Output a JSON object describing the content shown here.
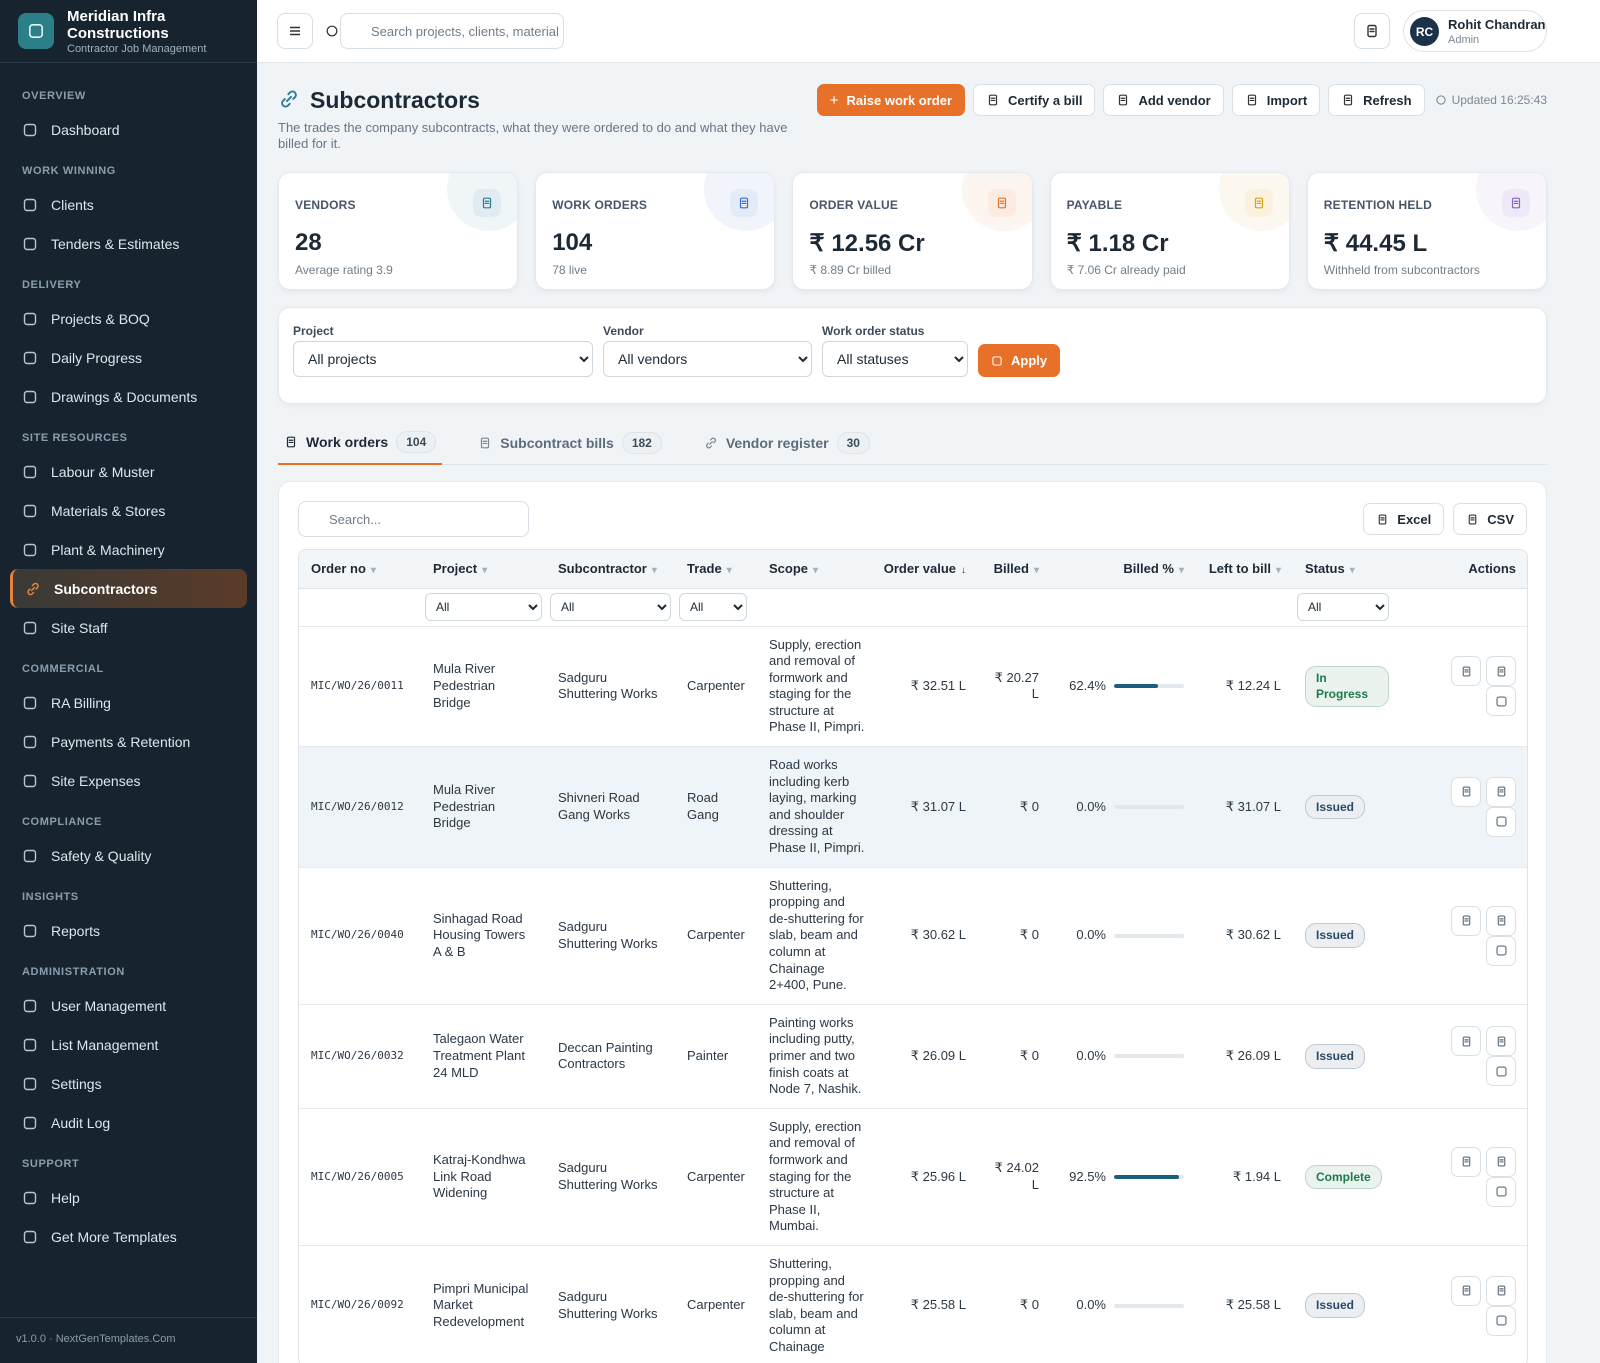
{
  "sidebar": {
    "brand": {
      "name": "Meridian Infra Constructions",
      "tagline": "Contractor Job Management"
    },
    "sections": [
      {
        "title": "OVERVIEW",
        "items": [
          "Dashboard"
        ]
      },
      {
        "title": "WORK WINNING",
        "items": [
          "Clients",
          "Tenders & Estimates"
        ]
      },
      {
        "title": "DELIVERY",
        "items": [
          "Projects & BOQ",
          "Daily Progress",
          "Drawings & Documents"
        ]
      },
      {
        "title": "SITE RESOURCES",
        "items": [
          "Labour & Muster",
          "Materials & Stores",
          "Plant & Machinery",
          {
            "label": "Subcontractors",
            "active": true
          },
          "Site Staff"
        ]
      },
      {
        "title": "COMMERCIAL",
        "items": [
          "RA Billing",
          "Payments & Retention",
          "Site Expenses"
        ]
      },
      {
        "title": "COMPLIANCE",
        "items": [
          "Safety & Quality"
        ]
      },
      {
        "title": "INSIGHTS",
        "items": [
          "Reports"
        ]
      },
      {
        "title": "ADMINISTRATION",
        "items": [
          "User Management",
          "List Management",
          "Settings",
          "Audit Log"
        ]
      },
      {
        "title": "SUPPORT",
        "items": [
          "Help",
          "Get More Templates"
        ]
      }
    ],
    "footer": "v1.0.0 · NextGenTemplates.Com"
  },
  "topbar": {
    "search_placeholder": "Search projects, clients, material",
    "user": {
      "initials": "RC",
      "name": "Rohit Chandran",
      "role": "Admin"
    }
  },
  "header": {
    "title": "Subcontractors",
    "subtitle": "The trades the company subcontracts, what they were ordered to do and what they have billed for it.",
    "primary_action": "Raise work order",
    "actions": [
      "Certify a bill",
      "Add vendor",
      "Import",
      "Refresh"
    ],
    "updated": "Updated 16:25:43"
  },
  "kpis": [
    {
      "label": "VENDORS",
      "value": "28",
      "note": "Average rating 3.9",
      "color": "#2b7a9c"
    },
    {
      "label": "WORK ORDERS",
      "value": "104",
      "note": "78 live",
      "color": "#3b6fc4"
    },
    {
      "label": "ORDER VALUE",
      "value": "₹ 12.56 Cr",
      "note": "₹ 8.89 Cr billed",
      "color": "#e8712a"
    },
    {
      "label": "PAYABLE",
      "value": "₹ 1.18 Cr",
      "note": "₹ 7.06 Cr already paid",
      "color": "#d9a21b"
    },
    {
      "label": "RETENTION HELD",
      "value": "₹ 44.45 L",
      "note": "Withheld from subcontractors",
      "color": "#8a63c9"
    }
  ],
  "filters": {
    "fields": [
      {
        "label": "Project",
        "value": "All projects"
      },
      {
        "label": "Vendor",
        "value": "All vendors"
      },
      {
        "label": "Work order status",
        "value": "All statuses"
      }
    ],
    "apply": "Apply"
  },
  "tabs": [
    {
      "label": "Work orders",
      "count": 104,
      "active": true
    },
    {
      "label": "Subcontract bills",
      "count": 182
    },
    {
      "label": "Vendor register",
      "count": 30
    }
  ],
  "table": {
    "search_placeholder": "Search...",
    "exports": [
      "Excel",
      "CSV"
    ],
    "columns": [
      "Order no",
      "Project",
      "Subcontractor",
      "Trade",
      "Scope",
      "Order value",
      "Billed",
      "Billed %",
      "Left to bill",
      "Status",
      "Actions"
    ],
    "sort_column": 5,
    "column_filters": [
      null,
      "All",
      "All",
      "All",
      null,
      null,
      null,
      null,
      null,
      "All",
      null
    ],
    "rows": [
      {
        "order_no": "MIC/WO/26/0011",
        "project": "Mula River Pedestrian Bridge",
        "subcontractor": "Sadguru Shuttering Works",
        "trade": "Carpenter",
        "scope": "Supply, erection and removal of formwork and staging for the structure at Phase II, Pimpri.",
        "order_value": "₹ 32.51 L",
        "billed": "₹ 20.27 L",
        "billed_pct": {
          "value": 62.4,
          "label": "62.4%"
        },
        "left_to_bill": "₹ 12.24 L",
        "status": "In Progress",
        "status_color": "#1f7a4a"
      },
      {
        "order_no": "MIC/WO/26/0012",
        "project": "Mula River Pedestrian Bridge",
        "subcontractor": "Shivneri Road Gang Works",
        "trade": "Road Gang",
        "scope": "Road works including kerb laying, marking and shoulder dressing at Phase II, Pimpri.",
        "order_value": "₹ 31.07 L",
        "billed": "₹ 0",
        "billed_pct": {
          "value": 0,
          "label": "0.0%"
        },
        "left_to_bill": "₹ 31.07 L",
        "status": "Issued",
        "status_color": "#2c4a68",
        "highlighted": true
      },
      {
        "order_no": "MIC/WO/26/0040",
        "project": "Sinhagad Road Housing Towers A & B",
        "subcontractor": "Sadguru Shuttering Works",
        "trade": "Carpenter",
        "scope": "Shuttering, propping and de-shuttering for slab, beam and column at Chainage 2+400, Pune.",
        "order_value": "₹ 30.62 L",
        "billed": "₹ 0",
        "billed_pct": {
          "value": 0,
          "label": "0.0%"
        },
        "left_to_bill": "₹ 30.62 L",
        "status": "Issued",
        "status_color": "#2c4a68"
      },
      {
        "order_no": "MIC/WO/26/0032",
        "project": "Talegaon Water Treatment Plant 24 MLD",
        "subcontractor": "Deccan Painting Contractors",
        "trade": "Painter",
        "scope": "Painting works including putty, primer and two finish coats at Node 7, Nashik.",
        "order_value": "₹ 26.09 L",
        "billed": "₹ 0",
        "billed_pct": {
          "value": 0,
          "label": "0.0%"
        },
        "left_to_bill": "₹ 26.09 L",
        "status": "Issued",
        "status_color": "#2c4a68"
      },
      {
        "order_no": "MIC/WO/26/0005",
        "project": "Katraj-Kondhwa Link Road Widening",
        "subcontractor": "Sadguru Shuttering Works",
        "trade": "Carpenter",
        "scope": "Supply, erection and removal of formwork and staging for the structure at Phase II, Mumbai.",
        "order_value": "₹ 25.96 L",
        "billed": "₹ 24.02 L",
        "billed_pct": {
          "value": 92.5,
          "label": "92.5%"
        },
        "left_to_bill": "₹ 1.94 L",
        "status": "Complete",
        "status_color": "#1f7a4a"
      },
      {
        "order_no": "MIC/WO/26/0092",
        "project": "Pimpri Municipal Market Redevelopment",
        "subcontractor": "Sadguru Shuttering Works",
        "trade": "Carpenter",
        "scope": "Shuttering, propping and de-shuttering for slab, beam and column at Chainage",
        "order_value": "₹ 25.58 L",
        "billed": "₹ 0",
        "billed_pct": {
          "value": 0,
          "label": "0.0%"
        },
        "left_to_bill": "₹ 25.58 L",
        "status": "Issued",
        "status_color": "#2c4a68"
      }
    ]
  }
}
